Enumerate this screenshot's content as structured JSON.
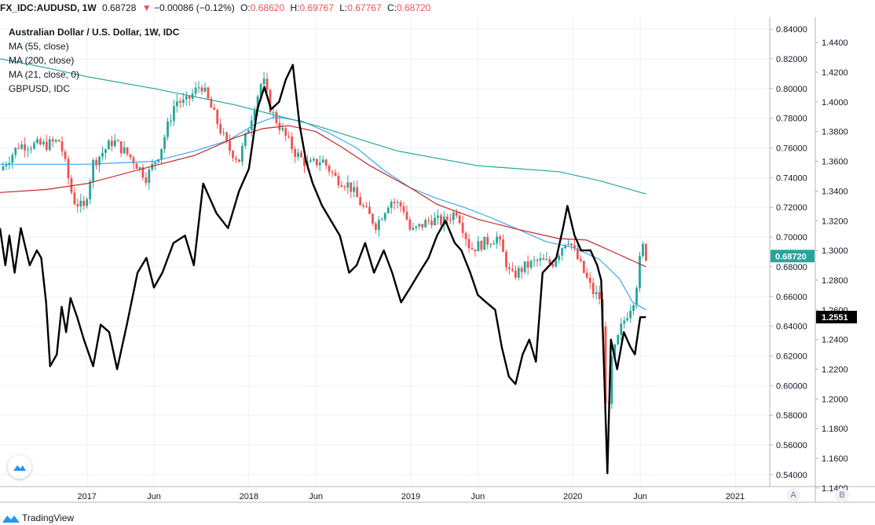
{
  "header": {
    "symbol": "FX_IDC:AUDUSD, 1W",
    "last": "0.68728",
    "change_arrow": "▼",
    "change": "−0.00086 (−0.12%)",
    "open_label": "O:",
    "open": "0.68620",
    "high_label": "H:",
    "high": "0.69767",
    "low_label": "L:",
    "low": "0.67767",
    "close_label": "C:",
    "close": "0.68720"
  },
  "legend": {
    "title": "Australian Dollar / U.S. Dollar, 1W, IDC",
    "ma55": "MA (55, close)",
    "ma200": "MA (200, close)",
    "ma21": "MA (21, close, 0)",
    "compare": "GBPUSD, IDC"
  },
  "axis_buttons": {
    "a": "A",
    "b": "B"
  },
  "footer": {
    "brand": "TradingView"
  },
  "colors": {
    "up": "#26a69a",
    "down": "#ef5350",
    "ma55": "#42a5f5",
    "ma200": "#c62828",
    "ma21": "#26a69a",
    "gbpusd": "#000000",
    "grid": "#e8f2f8",
    "price_label": "#26a69a"
  },
  "chart_data": {
    "type": "line",
    "x_ticks": [
      "2017",
      "Jun",
      "2018",
      "Jun",
      "2019",
      "Jun",
      "2020",
      "Jun",
      "2021"
    ],
    "x_tick_dates": [
      "2017-01-01",
      "2017-06-01",
      "2018-01-01",
      "2018-06-01",
      "2019-01-01",
      "2019-06-01",
      "2020-01-01",
      "2020-06-01",
      "2021-01-01"
    ],
    "x_range": [
      "2016-06-19",
      "2021-03-20"
    ],
    "y_axis_left": {
      "name": "AUDUSD",
      "ylim": [
        0.532,
        0.848
      ],
      "ticks": [
        "0.84000",
        "0.82000",
        "0.80000",
        "0.78000",
        "0.76000",
        "0.74000",
        "0.72000",
        "0.70000",
        "0.68000",
        "0.66000",
        "0.64000",
        "0.62000",
        "0.60000",
        "0.58000",
        "0.56000",
        "0.54000"
      ],
      "last_value_label": "0.68720"
    },
    "y_axis_right": {
      "name": "GBPUSD",
      "ylim": [
        1.141,
        1.457
      ],
      "ticks": [
        "1.4400",
        "1.4200",
        "1.4000",
        "1.3800",
        "1.3600",
        "1.3400",
        "1.3200",
        "1.3000",
        "1.2800",
        "1.2600",
        "1.2400",
        "1.2200",
        "1.2000",
        "1.1800",
        "1.1600",
        "1.1400"
      ],
      "last_value_label": "1.2551"
    },
    "grid": true,
    "series": [
      {
        "name": "Australian Dollar / U.S. Dollar, 1W, IDC",
        "kind": "candles_close",
        "axis": "left",
        "points": [
          [
            "2016-06-19",
            0.745
          ],
          [
            "2016-08-01",
            0.762
          ],
          [
            "2016-10-01",
            0.762
          ],
          [
            "2016-11-01",
            0.765
          ],
          [
            "2016-12-01",
            0.725
          ],
          [
            "2016-12-25",
            0.719
          ],
          [
            "2017-01-15",
            0.75
          ],
          [
            "2017-03-01",
            0.765
          ],
          [
            "2017-04-15",
            0.752
          ],
          [
            "2017-05-15",
            0.74
          ],
          [
            "2017-06-15",
            0.758
          ],
          [
            "2017-07-20",
            0.792
          ],
          [
            "2017-08-10",
            0.79
          ],
          [
            "2017-09-15",
            0.803
          ],
          [
            "2017-10-15",
            0.782
          ],
          [
            "2017-11-15",
            0.76
          ],
          [
            "2017-12-10",
            0.752
          ],
          [
            "2018-01-15",
            0.79
          ],
          [
            "2018-02-01",
            0.807
          ],
          [
            "2018-02-20",
            0.785
          ],
          [
            "2018-03-20",
            0.77
          ],
          [
            "2018-04-15",
            0.757
          ],
          [
            "2018-05-15",
            0.748
          ],
          [
            "2018-06-15",
            0.752
          ],
          [
            "2018-07-15",
            0.74
          ],
          [
            "2018-08-15",
            0.735
          ],
          [
            "2018-09-15",
            0.72
          ],
          [
            "2018-10-15",
            0.708
          ],
          [
            "2018-11-15",
            0.725
          ],
          [
            "2018-12-15",
            0.72
          ],
          [
            "2019-01-01",
            0.703
          ],
          [
            "2019-02-15",
            0.712
          ],
          [
            "2019-03-15",
            0.71
          ],
          [
            "2019-04-15",
            0.718
          ],
          [
            "2019-05-15",
            0.692
          ],
          [
            "2019-06-15",
            0.696
          ],
          [
            "2019-07-15",
            0.7
          ],
          [
            "2019-08-15",
            0.673
          ],
          [
            "2019-09-15",
            0.68
          ],
          [
            "2019-10-15",
            0.684
          ],
          [
            "2019-11-15",
            0.682
          ],
          [
            "2019-12-20",
            0.7
          ],
          [
            "2020-01-20",
            0.68
          ],
          [
            "2020-02-15",
            0.663
          ],
          [
            "2020-03-05",
            0.658
          ],
          [
            "2020-03-19",
            0.565
          ],
          [
            "2020-03-27",
            0.615
          ],
          [
            "2020-04-20",
            0.64
          ],
          [
            "2020-05-20",
            0.66
          ],
          [
            "2020-06-05",
            0.695
          ],
          [
            "2020-06-14",
            0.6872
          ]
        ]
      },
      {
        "name": "MA (55, close)",
        "axis": "left",
        "points": [
          [
            "2016-06-19",
            0.749
          ],
          [
            "2016-10-01",
            0.749
          ],
          [
            "2017-01-01",
            0.749
          ],
          [
            "2017-06-01",
            0.751
          ],
          [
            "2017-09-01",
            0.758
          ],
          [
            "2017-11-15",
            0.765
          ],
          [
            "2018-01-15",
            0.776
          ],
          [
            "2018-03-01",
            0.781
          ],
          [
            "2018-05-01",
            0.778
          ],
          [
            "2018-07-01",
            0.77
          ],
          [
            "2018-09-01",
            0.76
          ],
          [
            "2018-11-01",
            0.745
          ],
          [
            "2019-01-01",
            0.733
          ],
          [
            "2019-03-01",
            0.726
          ],
          [
            "2019-05-01",
            0.72
          ],
          [
            "2019-07-01",
            0.713
          ],
          [
            "2019-09-01",
            0.705
          ],
          [
            "2019-11-01",
            0.697
          ],
          [
            "2020-01-01",
            0.693
          ],
          [
            "2020-03-01",
            0.685
          ],
          [
            "2020-04-15",
            0.672
          ],
          [
            "2020-05-15",
            0.656
          ],
          [
            "2020-06-14",
            0.651
          ]
        ]
      },
      {
        "name": "MA (200, close)",
        "axis": "left",
        "points": [
          [
            "2016-06-19",
            0.73
          ],
          [
            "2016-10-01",
            0.732
          ],
          [
            "2017-01-01",
            0.736
          ],
          [
            "2017-06-01",
            0.748
          ],
          [
            "2017-09-01",
            0.755
          ],
          [
            "2017-12-01",
            0.767
          ],
          [
            "2018-02-01",
            0.773
          ],
          [
            "2018-04-01",
            0.775
          ],
          [
            "2018-06-01",
            0.771
          ],
          [
            "2018-08-01",
            0.76
          ],
          [
            "2018-10-01",
            0.748
          ],
          [
            "2019-01-01",
            0.733
          ],
          [
            "2019-03-01",
            0.722
          ],
          [
            "2019-06-01",
            0.712
          ],
          [
            "2019-09-01",
            0.705
          ],
          [
            "2019-12-01",
            0.699
          ],
          [
            "2020-02-01",
            0.698
          ],
          [
            "2020-04-01",
            0.69
          ],
          [
            "2020-06-14",
            0.68
          ]
        ]
      },
      {
        "name": "MA (21, close, 0)",
        "axis": "left",
        "points": [
          [
            "2016-06-19",
            0.82
          ],
          [
            "2016-10-01",
            0.814
          ],
          [
            "2017-01-01",
            0.808
          ],
          [
            "2017-06-01",
            0.8
          ],
          [
            "2017-12-01",
            0.789
          ],
          [
            "2018-06-01",
            0.775
          ],
          [
            "2018-12-01",
            0.758
          ],
          [
            "2019-06-01",
            0.748
          ],
          [
            "2019-12-01",
            0.744
          ],
          [
            "2020-03-01",
            0.738
          ],
          [
            "2020-06-14",
            0.729
          ]
        ]
      },
      {
        "name": "GBPUSD, IDC",
        "axis": "right",
        "points": [
          [
            "2016-06-19",
            1.315
          ],
          [
            "2016-07-01",
            1.29
          ],
          [
            "2016-07-10",
            1.31
          ],
          [
            "2016-07-22",
            1.285
          ],
          [
            "2016-08-05",
            1.315
          ],
          [
            "2016-08-25",
            1.29
          ],
          [
            "2016-09-10",
            1.3
          ],
          [
            "2016-09-20",
            1.295
          ],
          [
            "2016-10-01",
            1.265
          ],
          [
            "2016-10-10",
            1.222
          ],
          [
            "2016-10-25",
            1.23
          ],
          [
            "2016-11-05",
            1.262
          ],
          [
            "2016-11-15",
            1.245
          ],
          [
            "2016-11-25",
            1.268
          ],
          [
            "2016-12-10",
            1.255
          ],
          [
            "2016-12-25",
            1.24
          ],
          [
            "2017-01-15",
            1.222
          ],
          [
            "2017-02-01",
            1.25
          ],
          [
            "2017-02-20",
            1.245
          ],
          [
            "2017-03-10",
            1.22
          ],
          [
            "2017-04-01",
            1.25
          ],
          [
            "2017-04-25",
            1.285
          ],
          [
            "2017-05-15",
            1.295
          ],
          [
            "2017-06-01",
            1.275
          ],
          [
            "2017-06-20",
            1.285
          ],
          [
            "2017-07-15",
            1.305
          ],
          [
            "2017-08-10",
            1.31
          ],
          [
            "2017-08-30",
            1.29
          ],
          [
            "2017-09-20",
            1.345
          ],
          [
            "2017-10-20",
            1.325
          ],
          [
            "2017-11-15",
            1.315
          ],
          [
            "2017-12-10",
            1.34
          ],
          [
            "2018-01-01",
            1.355
          ],
          [
            "2018-01-20",
            1.395
          ],
          [
            "2018-02-05",
            1.41
          ],
          [
            "2018-02-20",
            1.395
          ],
          [
            "2018-03-10",
            1.4
          ],
          [
            "2018-03-25",
            1.415
          ],
          [
            "2018-04-10",
            1.425
          ],
          [
            "2018-04-25",
            1.385
          ],
          [
            "2018-05-10",
            1.36
          ],
          [
            "2018-05-25",
            1.345
          ],
          [
            "2018-06-15",
            1.33
          ],
          [
            "2018-07-05",
            1.32
          ],
          [
            "2018-07-25",
            1.31
          ],
          [
            "2018-08-15",
            1.285
          ],
          [
            "2018-09-01",
            1.29
          ],
          [
            "2018-09-20",
            1.305
          ],
          [
            "2018-10-10",
            1.285
          ],
          [
            "2018-11-01",
            1.3
          ],
          [
            "2018-11-20",
            1.285
          ],
          [
            "2018-12-10",
            1.265
          ],
          [
            "2018-12-31",
            1.275
          ],
          [
            "2019-01-20",
            1.285
          ],
          [
            "2019-02-10",
            1.295
          ],
          [
            "2019-03-01",
            1.31
          ],
          [
            "2019-03-20",
            1.32
          ],
          [
            "2019-04-10",
            1.305
          ],
          [
            "2019-04-25",
            1.3
          ],
          [
            "2019-05-15",
            1.285
          ],
          [
            "2019-06-01",
            1.27
          ],
          [
            "2019-06-20",
            1.265
          ],
          [
            "2019-07-10",
            1.26
          ],
          [
            "2019-07-25",
            1.235
          ],
          [
            "2019-08-10",
            1.215
          ],
          [
            "2019-08-25",
            1.21
          ],
          [
            "2019-09-10",
            1.23
          ],
          [
            "2019-09-25",
            1.24
          ],
          [
            "2019-10-10",
            1.225
          ],
          [
            "2019-10-25",
            1.285
          ],
          [
            "2019-11-10",
            1.29
          ],
          [
            "2019-11-25",
            1.295
          ],
          [
            "2019-12-10",
            1.315
          ],
          [
            "2019-12-20",
            1.33
          ],
          [
            "2020-01-05",
            1.31
          ],
          [
            "2020-01-20",
            1.3
          ],
          [
            "2020-02-10",
            1.3
          ],
          [
            "2020-02-25",
            1.29
          ],
          [
            "2020-03-05",
            1.28
          ],
          [
            "2020-03-19",
            1.15
          ],
          [
            "2020-03-27",
            1.24
          ],
          [
            "2020-04-10",
            1.22
          ],
          [
            "2020-04-25",
            1.245
          ],
          [
            "2020-05-10",
            1.235
          ],
          [
            "2020-05-20",
            1.23
          ],
          [
            "2020-06-01",
            1.255
          ],
          [
            "2020-06-14",
            1.2551
          ]
        ]
      }
    ]
  }
}
